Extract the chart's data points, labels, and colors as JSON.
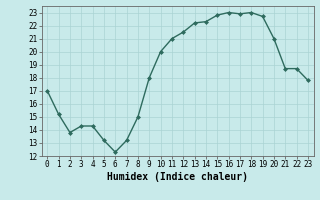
{
  "x": [
    0,
    1,
    2,
    3,
    4,
    5,
    6,
    7,
    8,
    9,
    10,
    11,
    12,
    13,
    14,
    15,
    16,
    17,
    18,
    19,
    20,
    21,
    22,
    23
  ],
  "y": [
    17.0,
    15.2,
    13.8,
    14.3,
    14.3,
    13.2,
    12.3,
    13.2,
    15.0,
    18.0,
    20.0,
    21.0,
    21.5,
    22.2,
    22.3,
    22.8,
    23.0,
    22.9,
    23.0,
    22.7,
    21.0,
    18.7,
    18.7,
    17.8
  ],
  "line_color": "#2e6b5e",
  "marker": "D",
  "marker_size": 2.0,
  "bg_color": "#c8eaea",
  "grid_color": "#aad4d4",
  "xlabel": "Humidex (Indice chaleur)",
  "xlim": [
    -0.5,
    23.5
  ],
  "ylim": [
    12,
    23.5
  ],
  "yticks": [
    12,
    13,
    14,
    15,
    16,
    17,
    18,
    19,
    20,
    21,
    22,
    23
  ],
  "xticks": [
    0,
    1,
    2,
    3,
    4,
    5,
    6,
    7,
    8,
    9,
    10,
    11,
    12,
    13,
    14,
    15,
    16,
    17,
    18,
    19,
    20,
    21,
    22,
    23
  ],
  "tick_fontsize": 5.5,
  "xlabel_fontsize": 7.0,
  "line_width": 1.0,
  "spine_color": "#666666"
}
